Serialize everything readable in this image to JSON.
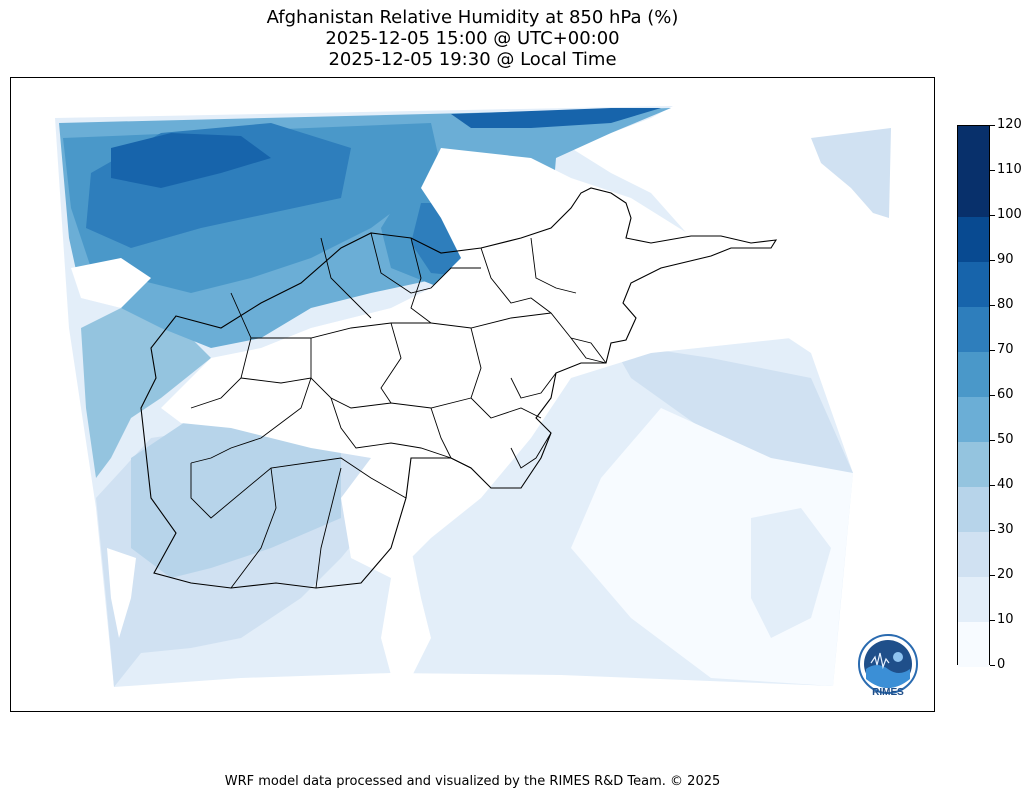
{
  "title": {
    "line1": "Afghanistan Relative Humidity at 850 hPa (%)",
    "line2": "2025-12-05 15:00 @ UTC+00:00",
    "line3": "2025-12-05 19:30 @ Local Time"
  },
  "colorbar": {
    "ticks": [
      "0",
      "10",
      "20",
      "30",
      "40",
      "50",
      "60",
      "70",
      "80",
      "90",
      "100",
      "110",
      "120"
    ],
    "colors": [
      "#f7fbff",
      "#e3eef9",
      "#d0e1f2",
      "#b7d4ea",
      "#94c4df",
      "#6baed6",
      "#4a98c9",
      "#2e7ebc",
      "#1764ab",
      "#084a91",
      "#08306b",
      "#08306b"
    ]
  },
  "logo": {
    "caption": "RIMES"
  },
  "footer": "WRF model data processed and visualized by the RIMES R&D Team. © 2025"
}
